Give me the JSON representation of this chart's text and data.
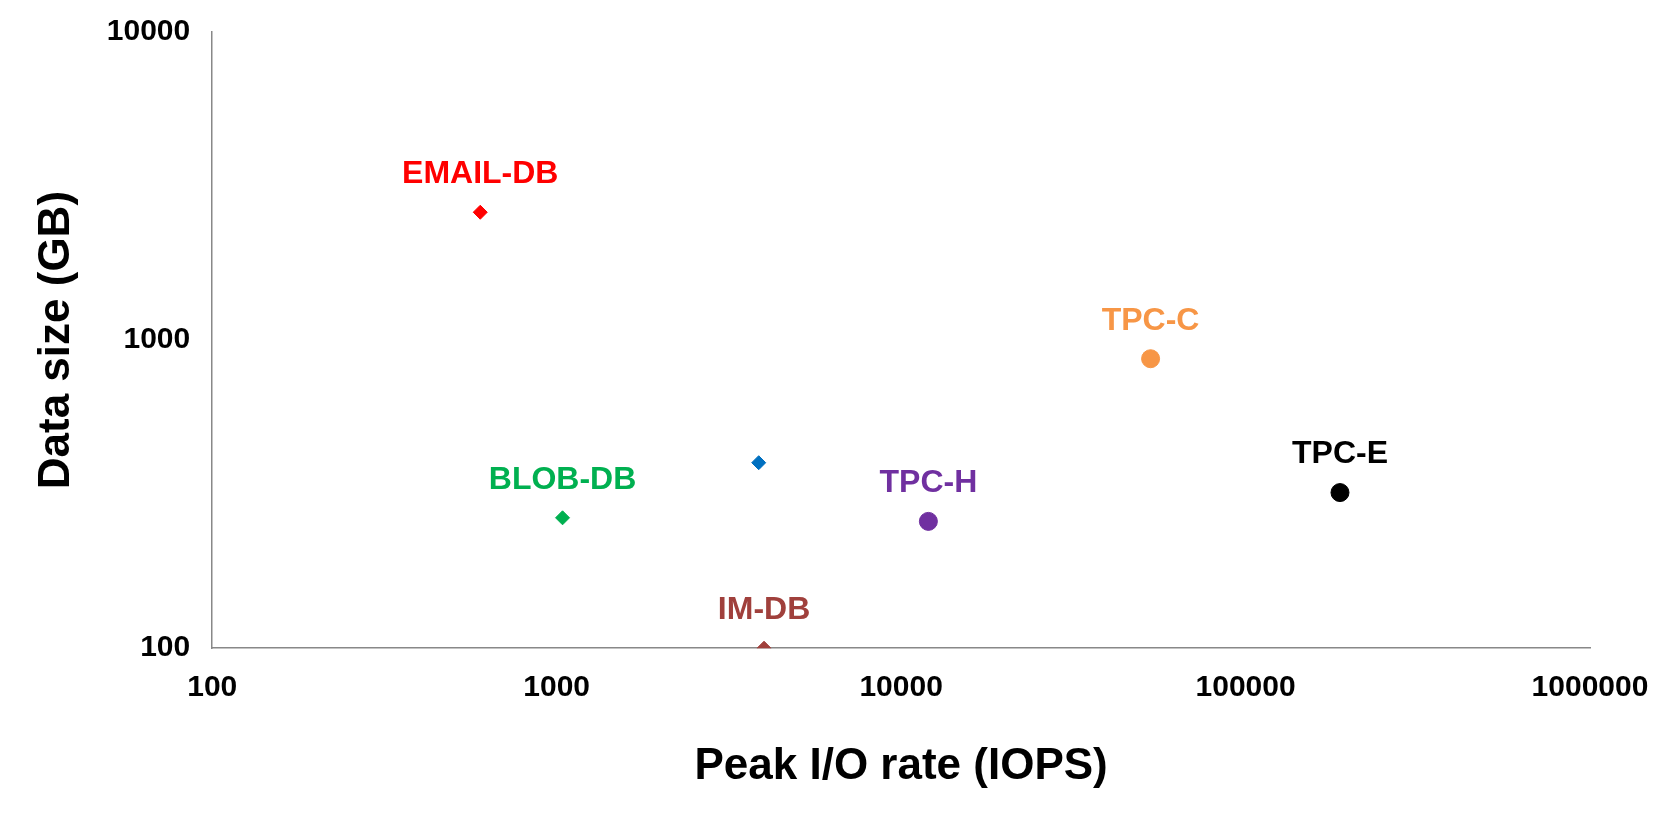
{
  "chart_data": {
    "type": "scatter",
    "xlabel": "Peak I/O rate (IOPS)",
    "ylabel": "Data size (GB)",
    "log": "xy",
    "grid": false,
    "legend": false,
    "xlim": [
      100,
      1000000
    ],
    "xticks": [
      100,
      1000,
      10000,
      100000,
      1000000
    ],
    "ylim": [
      100,
      10000
    ],
    "yticks": [
      100,
      1000,
      10000
    ],
    "series": [
      {
        "name": "EMAIL-DB",
        "color": "#ff0000",
        "marker": "diamond",
        "x": [
          600
        ],
        "values": [
          2600
        ]
      },
      {
        "name": "BLOB-DB",
        "color": "#00b050",
        "marker": "diamond",
        "x": [
          1040
        ],
        "values": [
          265
        ]
      },
      {
        "color": "#0070c0",
        "marker": "diamond",
        "x": [
          3860
        ],
        "values": [
          400
        ]
      },
      {
        "name": "IM-DB",
        "color": "#a0403c",
        "marker": "diamond",
        "x": [
          4000
        ],
        "values": [
          100
        ]
      },
      {
        "name": "TPC-H",
        "color": "#7030a0",
        "marker": "circle",
        "x": [
          12000
        ],
        "values": [
          258
        ]
      },
      {
        "name": "TPC-C",
        "color": "#f79646",
        "marker": "circle",
        "x": [
          53000
        ],
        "values": [
          870
        ]
      },
      {
        "name": "TPC-E",
        "color": "#000000",
        "marker": "circle",
        "x": [
          188000
        ],
        "values": [
          320
        ]
      }
    ]
  }
}
